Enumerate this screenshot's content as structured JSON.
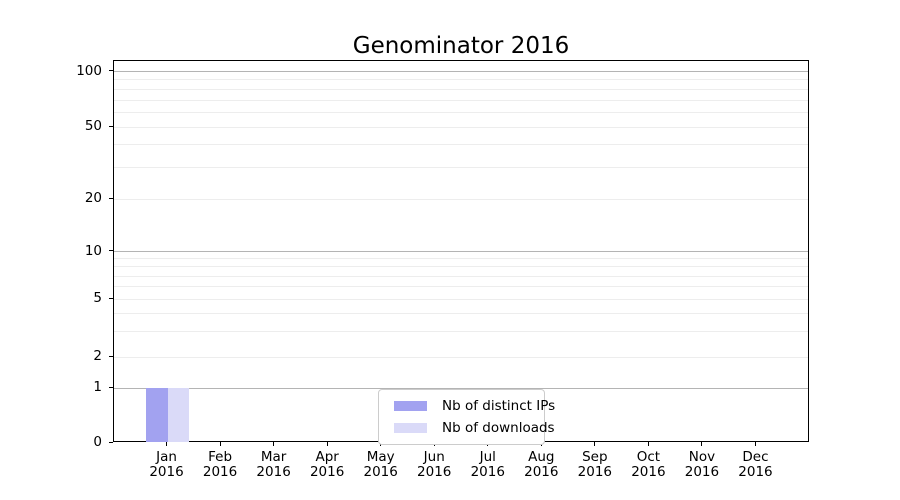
{
  "chart_data": {
    "type": "bar",
    "title": "Genominator 2016",
    "categories": [
      {
        "month": "Jan",
        "year": "2016"
      },
      {
        "month": "Feb",
        "year": "2016"
      },
      {
        "month": "Mar",
        "year": "2016"
      },
      {
        "month": "Apr",
        "year": "2016"
      },
      {
        "month": "May",
        "year": "2016"
      },
      {
        "month": "Jun",
        "year": "2016"
      },
      {
        "month": "Jul",
        "year": "2016"
      },
      {
        "month": "Aug",
        "year": "2016"
      },
      {
        "month": "Sep",
        "year": "2016"
      },
      {
        "month": "Oct",
        "year": "2016"
      },
      {
        "month": "Nov",
        "year": "2016"
      },
      {
        "month": "Dec",
        "year": "2016"
      }
    ],
    "series": [
      {
        "name": "Nb of distinct IPs",
        "color": "#a2a2f0",
        "values": [
          1,
          0,
          0,
          0,
          0,
          0,
          0,
          0,
          0,
          0,
          0,
          0
        ]
      },
      {
        "name": "Nb of downloads",
        "color": "#dadaf8",
        "values": [
          1,
          0,
          0,
          0,
          0,
          0,
          0,
          0,
          0,
          0,
          0,
          0
        ]
      }
    ],
    "yscale": "symlog",
    "yticks": [
      0,
      1,
      2,
      5,
      10,
      20,
      50,
      100
    ],
    "ylim": [
      0,
      110
    ],
    "xlabel": "",
    "ylabel": "",
    "grid": "horizontal",
    "legend_position": "lower-center"
  }
}
